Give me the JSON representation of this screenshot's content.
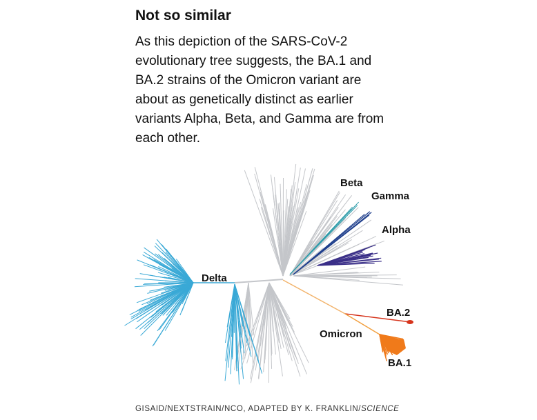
{
  "header": {
    "title": "Not so similar",
    "description": [
      "As this depiction of the SARS-CoV-2",
      "evolutionary tree suggests, the BA.1 and",
      "BA.2 strains of the Omicron variant are",
      "about as genetically distinct as earlier",
      "variants Alpha, Beta, and Gamma are from",
      "each other."
    ]
  },
  "tree": {
    "labels": [
      "Beta",
      "Gamma",
      "Alpha",
      "Delta",
      "BA.2",
      "Omicron",
      "BA.1"
    ]
  },
  "credit": {
    "text": "GISAID/NEXTSTRAIN/NCO, ADAPTED BY K. FRANKLIN/",
    "publication": "SCIENCE"
  }
}
